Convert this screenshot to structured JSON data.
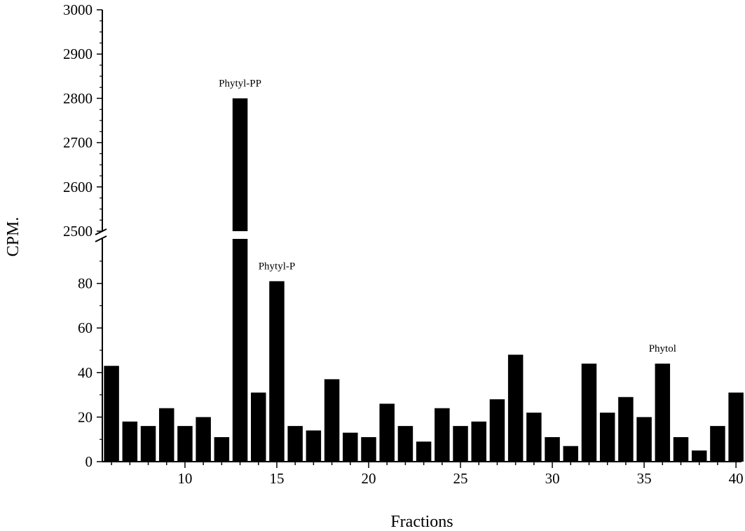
{
  "chart_data": {
    "type": "bar",
    "xlabel": "Fractions",
    "ylabel": "CPM.",
    "x": [
      6,
      7,
      8,
      9,
      10,
      11,
      12,
      13,
      14,
      15,
      16,
      17,
      18,
      19,
      20,
      21,
      22,
      23,
      24,
      25,
      26,
      27,
      28,
      29,
      30,
      31,
      32,
      33,
      34,
      35,
      36,
      37,
      38,
      39,
      40
    ],
    "values": [
      43,
      18,
      16,
      24,
      16,
      20,
      11,
      2800,
      31,
      81,
      16,
      14,
      37,
      13,
      11,
      26,
      16,
      9,
      24,
      16,
      18,
      28,
      48,
      22,
      11,
      7,
      44,
      22,
      29,
      20,
      44,
      11,
      5,
      16,
      31
    ],
    "xlim": [
      5.5,
      40.3
    ],
    "x_ticks": [
      10,
      15,
      20,
      25,
      30,
      35,
      40
    ],
    "x_tick_labels": [
      "10",
      "15",
      "20",
      "25",
      "30",
      "35",
      "40"
    ],
    "y_axis_break": true,
    "y_segments": [
      {
        "range": [
          0,
          100
        ],
        "ticks": [
          0,
          20,
          40,
          60,
          80
        ],
        "tick_labels": [
          "0",
          "20",
          "40",
          "60",
          "80"
        ]
      },
      {
        "range": [
          2500,
          3000
        ],
        "ticks": [
          2500,
          2600,
          2700,
          2800,
          2900,
          3000
        ],
        "tick_labels": [
          "2500",
          "2600",
          "2700",
          "2800",
          "2900",
          "3000"
        ]
      }
    ],
    "annotations": [
      {
        "text": "Phytyl-PP",
        "x": 13,
        "y": 2800
      },
      {
        "text": "Phytyl-P",
        "x": 15,
        "y": 81
      },
      {
        "text": "Phytol",
        "x": 36,
        "y": 44
      }
    ],
    "bar_color": "#000000"
  }
}
